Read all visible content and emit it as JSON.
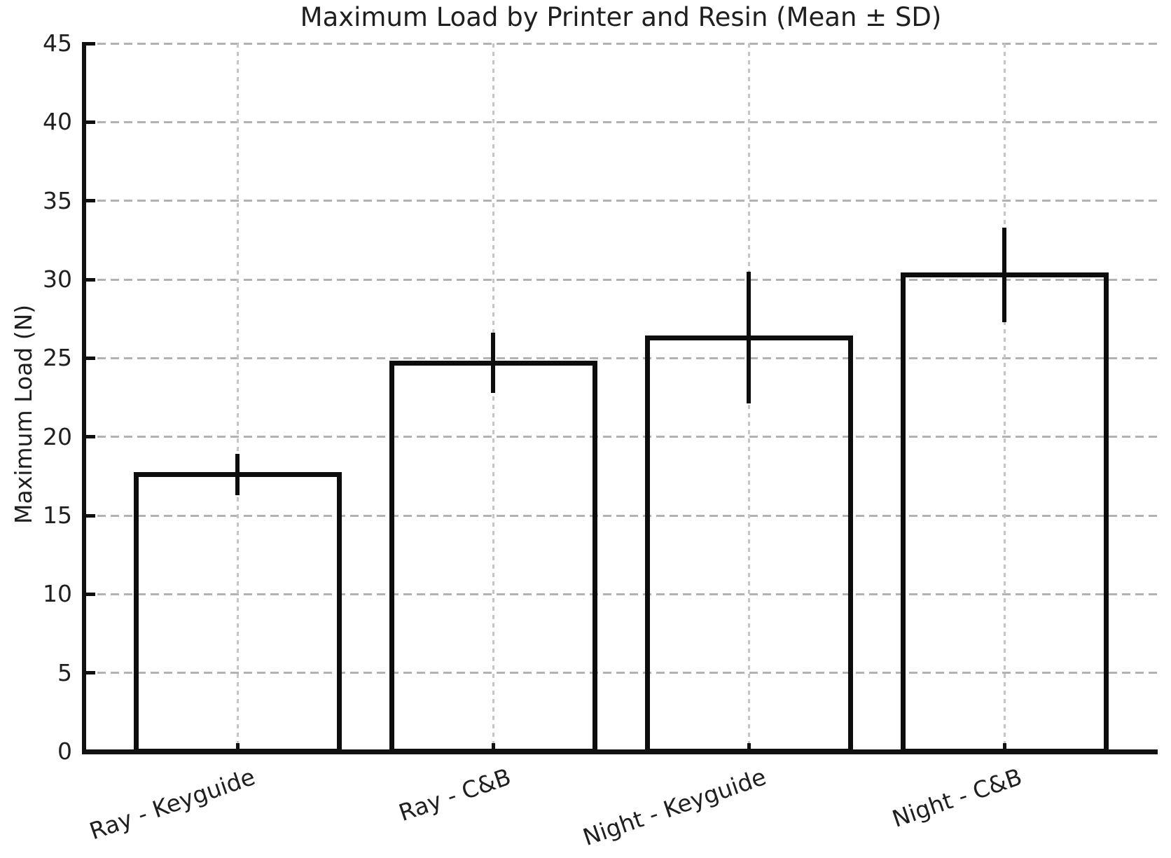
{
  "chart_data": {
    "type": "bar",
    "title": "Maximum Load by Printer and Resin (Mean ± SD)",
    "xlabel": "",
    "ylabel": "Maximum Load (N)",
    "categories": [
      "Ray - Keyguide",
      "Ray - C&B",
      "Night - Keyguide",
      "Night - C&B"
    ],
    "values": [
      17.6,
      24.7,
      26.3,
      30.3
    ],
    "errors": [
      1.3,
      1.9,
      4.2,
      3.0
    ],
    "error_type": "standard deviation",
    "ylim": [
      0,
      45
    ],
    "yticks": [
      0,
      5,
      10,
      15,
      20,
      25,
      30,
      35,
      40,
      45
    ],
    "grid": "dashed, both axes",
    "legend": "none",
    "x_label_rotation_deg": 19,
    "bar_fill": "#ffffff",
    "bar_edge_color": "#0d0d0d",
    "error_bar_color": "#0d0d0d",
    "grid_color": "#b2b2b2",
    "axis_color": "#111111",
    "text_color": "#1f1f1f",
    "background_color": "#ffffff"
  }
}
